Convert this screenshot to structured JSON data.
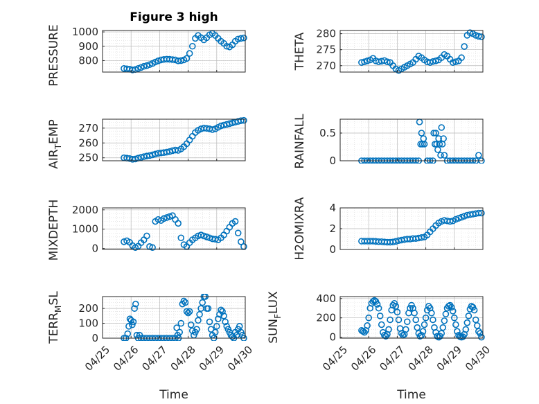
{
  "figure": {
    "title": "Figure 3 high",
    "x_label": "Time"
  },
  "colors": {
    "marker": "#0072BD",
    "axis": "#262626",
    "grid": "#b8b8b8",
    "minor_grid": "#d9d9d9"
  },
  "chart_data": [
    {
      "type": "scatter",
      "id": "pressure",
      "ylabel": "PRESSURE",
      "x_range": [
        "04/25",
        "04/30"
      ],
      "ylim": [
        720,
        1010
      ],
      "yticks": [
        800,
        900,
        1000
      ],
      "x_ticklabels_shown": false,
      "grid": true,
      "series": [
        {
          "x_days_from_04_25": [
            0.75,
            0.85,
            0.95,
            1.05,
            1.15,
            1.25,
            1.35,
            1.45,
            1.55,
            1.65,
            1.75,
            1.85,
            1.95,
            2.05,
            2.15,
            2.25,
            2.35,
            2.45,
            2.55,
            2.65,
            2.75,
            2.85,
            2.95,
            3.05,
            3.15,
            3.25,
            3.35,
            3.45,
            3.55,
            3.65,
            3.75,
            3.85,
            3.95,
            4.05,
            4.15,
            4.25,
            4.35,
            4.45,
            4.55,
            4.65,
            4.75,
            4.85,
            4.95
          ],
          "y": [
            745,
            743,
            740,
            735,
            738,
            745,
            752,
            760,
            765,
            772,
            780,
            790,
            798,
            805,
            808,
            810,
            809,
            807,
            805,
            798,
            800,
            805,
            815,
            850,
            900,
            955,
            975,
            960,
            945,
            960,
            980,
            990,
            975,
            955,
            935,
            920,
            900,
            895,
            910,
            935,
            950,
            955,
            958
          ]
        }
      ]
    },
    {
      "type": "scatter",
      "id": "theta",
      "ylabel": "THETA",
      "x_range": [
        "04/25",
        "04/30"
      ],
      "ylim": [
        268,
        281
      ],
      "yticks": [
        270,
        275,
        280
      ],
      "x_ticklabels_shown": false,
      "grid": true,
      "series": [
        {
          "x_days_from_04_25": [
            0.75,
            0.85,
            0.95,
            1.05,
            1.15,
            1.25,
            1.35,
            1.45,
            1.55,
            1.65,
            1.75,
            1.85,
            1.95,
            2.05,
            2.15,
            2.25,
            2.35,
            2.45,
            2.55,
            2.65,
            2.75,
            2.85,
            2.95,
            3.05,
            3.15,
            3.25,
            3.35,
            3.45,
            3.55,
            3.65,
            3.75,
            3.85,
            3.95,
            4.05,
            4.15,
            4.25,
            4.35,
            4.45,
            4.55,
            4.65,
            4.75,
            4.85,
            4.95
          ],
          "y": [
            271.0,
            271.2,
            271.5,
            271.8,
            272.3,
            271.5,
            271.2,
            271.4,
            271.6,
            271.2,
            271.0,
            270.0,
            269.0,
            268.5,
            269.0,
            269.5,
            270.0,
            270.5,
            271.0,
            272.0,
            273.0,
            272.5,
            271.8,
            271.2,
            271.0,
            271.3,
            271.5,
            271.8,
            272.5,
            273.5,
            273.0,
            272.0,
            271.0,
            271.2,
            271.5,
            272.5,
            276.0,
            279.5,
            280.3,
            280.0,
            279.5,
            279.2,
            279.0
          ]
        }
      ]
    },
    {
      "type": "scatter",
      "id": "air_temp",
      "ylabel": "AIR_TEMP",
      "x_range": [
        "04/25",
        "04/30"
      ],
      "ylim": [
        248,
        276
      ],
      "yticks": [
        250,
        260,
        270
      ],
      "x_ticklabels_shown": false,
      "grid": true,
      "series": [
        {
          "x_days_from_04_25": [
            0.75,
            0.85,
            0.95,
            1.05,
            1.15,
            1.25,
            1.35,
            1.45,
            1.55,
            1.65,
            1.75,
            1.85,
            1.95,
            2.05,
            2.15,
            2.25,
            2.35,
            2.45,
            2.55,
            2.65,
            2.75,
            2.85,
            2.95,
            3.05,
            3.15,
            3.25,
            3.35,
            3.45,
            3.55,
            3.65,
            3.75,
            3.85,
            3.95,
            4.05,
            4.15,
            4.25,
            4.35,
            4.45,
            4.55,
            4.65,
            4.75,
            4.85,
            4.95
          ],
          "y": [
            250.0,
            249.8,
            249.5,
            249.0,
            249.2,
            249.8,
            250.3,
            250.8,
            251.2,
            251.5,
            252.0,
            252.5,
            253.0,
            253.3,
            253.5,
            253.8,
            254.2,
            254.8,
            255.2,
            255.0,
            256.0,
            257.5,
            259.5,
            262.0,
            264.5,
            267.0,
            268.5,
            269.5,
            270.0,
            269.8,
            269.5,
            269.0,
            269.5,
            270.5,
            271.5,
            272.0,
            272.5,
            273.0,
            273.5,
            274.0,
            274.5,
            275.0,
            275.2
          ]
        }
      ]
    },
    {
      "type": "scatter",
      "id": "rainfall",
      "ylabel": "RAINFALL",
      "x_range": [
        "04/25",
        "04/30"
      ],
      "ylim": [
        0,
        0.75
      ],
      "yticks": [
        0,
        0.5
      ],
      "x_ticklabels_shown": false,
      "grid": true,
      "series": [
        {
          "x_days_from_04_25": [
            0.75,
            0.85,
            0.95,
            1.05,
            1.15,
            1.25,
            1.35,
            1.45,
            1.55,
            1.65,
            1.75,
            1.85,
            1.95,
            2.05,
            2.15,
            2.25,
            2.35,
            2.45,
            2.55,
            2.65,
            2.75,
            2.78,
            2.82,
            2.85,
            2.88,
            2.92,
            2.95,
            3.05,
            3.15,
            3.25,
            3.28,
            3.32,
            3.35,
            3.38,
            3.42,
            3.45,
            3.48,
            3.52,
            3.55,
            3.58,
            3.62,
            3.65,
            3.75,
            3.85,
            3.95,
            4.05,
            4.15,
            4.25,
            4.35,
            4.45,
            4.55,
            4.65,
            4.75,
            4.85,
            4.95
          ],
          "y": [
            0,
            0,
            0,
            0,
            0,
            0,
            0,
            0,
            0,
            0,
            0,
            0,
            0,
            0,
            0,
            0,
            0,
            0,
            0,
            0,
            0,
            0.7,
            0.3,
            0.5,
            0.3,
            0.4,
            0.3,
            0,
            0,
            0,
            0.5,
            0.3,
            0.5,
            0.3,
            0.2,
            0.4,
            0.3,
            0.1,
            0.6,
            0.3,
            0.4,
            0.1,
            0,
            0,
            0,
            0,
            0,
            0,
            0,
            0,
            0,
            0,
            0,
            0.1,
            0
          ]
        }
      ]
    },
    {
      "type": "scatter",
      "id": "mixdepth",
      "ylabel": "MIXDEPTH",
      "x_range": [
        "04/25",
        "04/30"
      ],
      "ylim": [
        -50,
        2100
      ],
      "yticks": [
        0,
        1000,
        2000
      ],
      "x_ticklabels_shown": false,
      "grid": true,
      "series": [
        {
          "x_days_from_04_25": [
            0.75,
            0.85,
            0.95,
            1.05,
            1.15,
            1.25,
            1.35,
            1.45,
            1.55,
            1.65,
            1.75,
            1.85,
            1.95,
            2.05,
            2.15,
            2.25,
            2.35,
            2.45,
            2.55,
            2.65,
            2.75,
            2.85,
            2.95,
            3.05,
            3.15,
            3.25,
            3.35,
            3.45,
            3.55,
            3.65,
            3.75,
            3.85,
            3.95,
            4.05,
            4.15,
            4.25,
            4.35,
            4.45,
            4.55,
            4.65,
            4.75,
            4.85,
            4.95
          ],
          "y": [
            350,
            400,
            320,
            150,
            50,
            120,
            300,
            450,
            650,
            100,
            50,
            1400,
            1500,
            1450,
            1550,
            1600,
            1650,
            1700,
            1500,
            1300,
            550,
            200,
            100,
            300,
            450,
            550,
            650,
            700,
            650,
            600,
            550,
            500,
            480,
            450,
            550,
            700,
            900,
            1100,
            1300,
            1400,
            800,
            350,
            100
          ]
        }
      ]
    },
    {
      "type": "scatter",
      "id": "h2omixra",
      "ylabel": "H2OMIXRA",
      "x_range": [
        "04/25",
        "04/30"
      ],
      "ylim": [
        0,
        4
      ],
      "yticks": [
        0,
        2,
        4
      ],
      "x_ticklabels_shown": false,
      "grid": true,
      "series": [
        {
          "x_days_from_04_25": [
            0.75,
            0.85,
            0.95,
            1.05,
            1.15,
            1.25,
            1.35,
            1.45,
            1.55,
            1.65,
            1.75,
            1.85,
            1.95,
            2.05,
            2.15,
            2.25,
            2.35,
            2.45,
            2.55,
            2.65,
            2.75,
            2.85,
            2.95,
            3.05,
            3.15,
            3.25,
            3.35,
            3.45,
            3.55,
            3.65,
            3.75,
            3.85,
            3.95,
            4.05,
            4.15,
            4.25,
            4.35,
            4.45,
            4.55,
            4.65,
            4.75,
            4.85,
            4.95
          ],
          "y": [
            0.8,
            0.8,
            0.8,
            0.8,
            0.8,
            0.78,
            0.75,
            0.75,
            0.72,
            0.7,
            0.7,
            0.72,
            0.78,
            0.85,
            0.9,
            0.95,
            1.0,
            1.0,
            1.05,
            1.05,
            1.1,
            1.15,
            1.2,
            1.4,
            1.7,
            2.0,
            2.3,
            2.55,
            2.7,
            2.8,
            2.75,
            2.7,
            2.75,
            2.9,
            3.0,
            3.1,
            3.2,
            3.3,
            3.35,
            3.4,
            3.45,
            3.5,
            3.5
          ]
        }
      ]
    },
    {
      "type": "scatter",
      "id": "terr_msl",
      "ylabel": "TERR_MSL",
      "x_range": [
        "04/25",
        "04/30"
      ],
      "ylim": [
        0,
        280
      ],
      "yticks": [
        0,
        100,
        200
      ],
      "x_ticklabels": [
        "04/25",
        "04/26",
        "04/27",
        "04/28",
        "04/29",
        "04/30"
      ],
      "xlabel": "Time",
      "grid": true,
      "series": [
        {
          "x_days_from_04_25": [
            0.75,
            0.82,
            0.88,
            0.92,
            0.96,
            1.0,
            1.04,
            1.08,
            1.12,
            1.16,
            1.2,
            1.25,
            1.3,
            1.35,
            1.45,
            1.55,
            1.65,
            1.75,
            1.85,
            1.95,
            2.05,
            2.15,
            2.25,
            2.35,
            2.45,
            2.55,
            2.6,
            2.63,
            2.66,
            2.7,
            2.75,
            2.8,
            2.85,
            2.9,
            2.95,
            3.0,
            3.05,
            3.1,
            3.15,
            3.2,
            3.25,
            3.3,
            3.35,
            3.4,
            3.45,
            3.5,
            3.55,
            3.6,
            3.65,
            3.7,
            3.75,
            3.8,
            3.85,
            3.9,
            3.95,
            4.0,
            4.05,
            4.1,
            4.15,
            4.2,
            4.25,
            4.3,
            4.35,
            4.4,
            4.45,
            4.5,
            4.55,
            4.6,
            4.65,
            4.7,
            4.75,
            4.8,
            4.85,
            4.9,
            4.95
          ],
          "y": [
            0,
            0,
            30,
            80,
            130,
            120,
            90,
            110,
            200,
            230,
            20,
            0,
            20,
            0,
            0,
            0,
            0,
            0,
            0,
            0,
            0,
            0,
            0,
            0,
            0,
            0,
            70,
            20,
            0,
            40,
            100,
            230,
            250,
            240,
            180,
            170,
            180,
            90,
            50,
            20,
            40,
            60,
            120,
            160,
            200,
            240,
            280,
            280,
            200,
            200,
            110,
            60,
            20,
            0,
            40,
            80,
            130,
            160,
            190,
            180,
            150,
            110,
            80,
            60,
            40,
            20,
            10,
            0,
            40,
            20,
            60,
            80,
            40,
            20,
            0
          ]
        }
      ]
    },
    {
      "type": "scatter",
      "id": "sun_flux",
      "ylabel": "SUN_FLUX",
      "x_range": [
        "04/25",
        "04/30"
      ],
      "ylim": [
        -10,
        420
      ],
      "yticks": [
        0,
        200,
        400
      ],
      "x_ticklabels": [
        "04/25",
        "04/26",
        "04/27",
        "04/28",
        "04/29",
        "04/30"
      ],
      "xlabel": "Time",
      "grid": true,
      "series": [
        {
          "x_days_from_04_25": [
            0.75,
            0.8,
            0.85,
            0.9,
            0.95,
            1.0,
            1.05,
            1.1,
            1.15,
            1.2,
            1.25,
            1.3,
            1.35,
            1.4,
            1.45,
            1.5,
            1.55,
            1.6,
            1.65,
            1.7,
            1.75,
            1.8,
            1.85,
            1.9,
            1.95,
            2.0,
            2.05,
            2.1,
            2.15,
            2.2,
            2.25,
            2.3,
            2.35,
            2.4,
            2.45,
            2.5,
            2.55,
            2.6,
            2.65,
            2.7,
            2.75,
            2.8,
            2.85,
            2.9,
            2.95,
            3.0,
            3.05,
            3.1,
            3.15,
            3.2,
            3.25,
            3.3,
            3.35,
            3.4,
            3.45,
            3.5,
            3.55,
            3.6,
            3.65,
            3.7,
            3.75,
            3.8,
            3.85,
            3.9,
            3.95,
            4.0,
            4.05,
            4.1,
            4.15,
            4.2,
            4.25,
            4.3,
            4.35,
            4.4,
            4.45,
            4.5,
            4.55,
            4.6,
            4.65,
            4.7,
            4.75,
            4.8,
            4.85,
            4.9,
            4.95
          ],
          "y": [
            70,
            60,
            50,
            70,
            120,
            200,
            300,
            350,
            370,
            380,
            370,
            340,
            300,
            220,
            130,
            50,
            20,
            10,
            30,
            80,
            180,
            280,
            330,
            350,
            320,
            260,
            180,
            90,
            40,
            20,
            30,
            80,
            160,
            250,
            300,
            330,
            300,
            250,
            180,
            100,
            40,
            10,
            20,
            60,
            130,
            200,
            280,
            320,
            300,
            250,
            180,
            100,
            50,
            10,
            0,
            10,
            40,
            100,
            170,
            240,
            300,
            320,
            330,
            310,
            270,
            200,
            130,
            60,
            20,
            5,
            0,
            5,
            30,
            80,
            150,
            220,
            290,
            320,
            310,
            280,
            180,
            120,
            60,
            40,
            0
          ]
        }
      ]
    }
  ]
}
